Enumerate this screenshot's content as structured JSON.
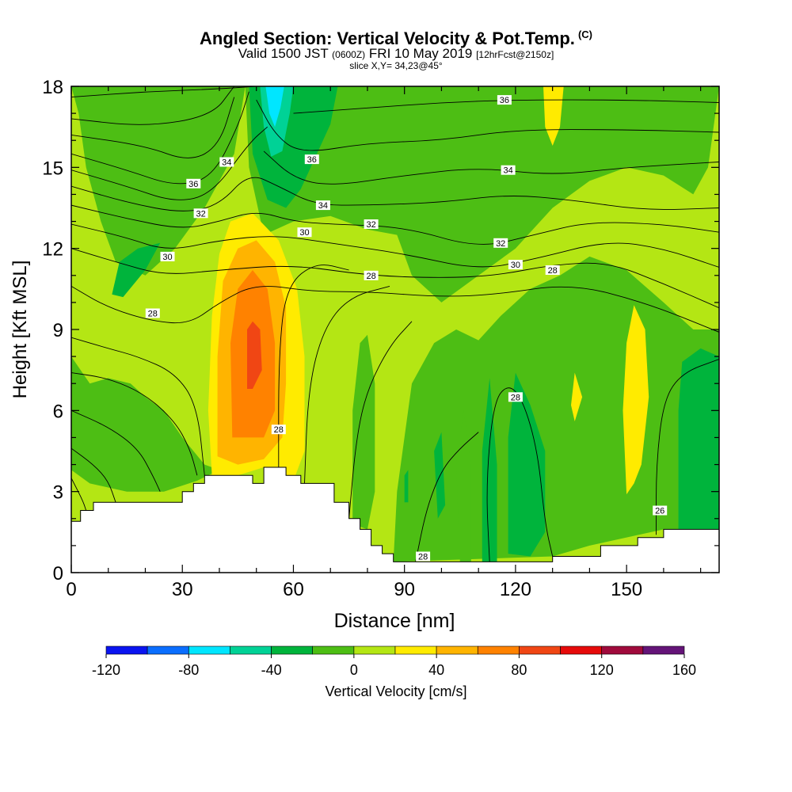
{
  "chart_data": {
    "type": "heatmap",
    "title": "Angled Section: Vertical Velocity & Pot.Temp.",
    "title_units": "(C)",
    "subtitle_parts": [
      "Valid 1500 JST",
      "(0600Z)",
      "FRI 10 May 2019",
      "[12hrFcst@2150z]"
    ],
    "slice_label": "slice X,Y= 34,23@45°",
    "xlabel": "Distance [nm]",
    "ylabel": "Height [Kft MSL]",
    "xlim": [
      0,
      175
    ],
    "ylim": [
      0,
      18
    ],
    "x_ticks": [
      0,
      30,
      60,
      90,
      120,
      150
    ],
    "y_ticks": [
      0,
      3,
      6,
      9,
      12,
      15,
      18
    ],
    "colorbar": {
      "label": "Vertical Velocity [cm/s]",
      "ticks": [
        -120,
        -80,
        -40,
        0,
        40,
        80,
        120,
        160
      ],
      "bounds": [
        -120,
        -100,
        -80,
        -60,
        -40,
        -20,
        0,
        20,
        40,
        60,
        80,
        100,
        120,
        140,
        160
      ],
      "colors": [
        "#0a14f0",
        "#0a6eff",
        "#00e6ff",
        "#00d296",
        "#00b43c",
        "#4dbe14",
        "#b4e614",
        "#ffeb00",
        "#ffb400",
        "#ff8200",
        "#f04614",
        "#e60a0a",
        "#a00a3c",
        "#641478"
      ]
    },
    "grid": false,
    "terrain_height_kft": [
      [
        0,
        1.9
      ],
      [
        2.5,
        2.3
      ],
      [
        6,
        2.6
      ],
      [
        30,
        3.0
      ],
      [
        33,
        3.3
      ],
      [
        36,
        3.6
      ],
      [
        49,
        3.3
      ],
      [
        52,
        3.9
      ],
      [
        58,
        3.6
      ],
      [
        62,
        3.3
      ],
      [
        71,
        2.6
      ],
      [
        75,
        2.0
      ],
      [
        78,
        1.6
      ],
      [
        81,
        1.0
      ],
      [
        84,
        0.7
      ],
      [
        87,
        0.4
      ],
      [
        130,
        0.6
      ],
      [
        143,
        1.0
      ],
      [
        153,
        1.3
      ],
      [
        160,
        1.6
      ],
      [
        175,
        1.6
      ]
    ],
    "updraft_core": {
      "x": 50,
      "y": 8.3,
      "peak_cm_s": 90
    },
    "downdraft_core": {
      "x": 55,
      "y": 17.2,
      "min_cm_s": -70
    },
    "potential_temperature_labels": [
      {
        "text": "36",
        "x": 117,
        "y": 17.5
      },
      {
        "text": "36",
        "x": 65,
        "y": 15.3
      },
      {
        "text": "36",
        "x": 33,
        "y": 14.4
      },
      {
        "text": "34",
        "x": 42,
        "y": 15.2
      },
      {
        "text": "34",
        "x": 118,
        "y": 14.9
      },
      {
        "text": "34",
        "x": 68,
        "y": 13.6
      },
      {
        "text": "32",
        "x": 35,
        "y": 13.3
      },
      {
        "text": "32",
        "x": 81,
        "y": 12.9
      },
      {
        "text": "32",
        "x": 116,
        "y": 12.2
      },
      {
        "text": "30",
        "x": 26,
        "y": 11.7
      },
      {
        "text": "30",
        "x": 63,
        "y": 12.6
      },
      {
        "text": "30",
        "x": 120,
        "y": 11.4
      },
      {
        "text": "28",
        "x": 81,
        "y": 11.0
      },
      {
        "text": "28",
        "x": 130,
        "y": 11.2
      },
      {
        "text": "28",
        "x": 22,
        "y": 9.6
      },
      {
        "text": "28",
        "x": 56,
        "y": 5.3
      },
      {
        "text": "28",
        "x": 120,
        "y": 6.5
      },
      {
        "text": "28",
        "x": 95,
        "y": 0.6
      },
      {
        "text": "26",
        "x": 159,
        "y": 2.3
      }
    ]
  }
}
